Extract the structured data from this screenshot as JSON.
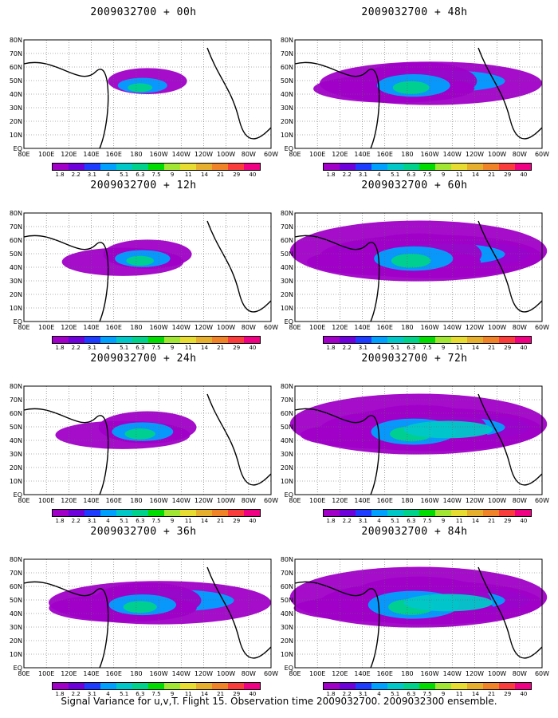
{
  "panels": [
    {
      "title": "2009032700 + 00h",
      "level": 0
    },
    {
      "title": "2009032700 + 48h",
      "level": 4
    },
    {
      "title": "2009032700 + 12h",
      "level": 1
    },
    {
      "title": "2009032700 + 60h",
      "level": 5
    },
    {
      "title": "2009032700 + 24h",
      "level": 2
    },
    {
      "title": "2009032700 + 72h",
      "level": 6
    },
    {
      "title": "2009032700 + 36h",
      "level": 3
    },
    {
      "title": "2009032700 + 84h",
      "level": 7
    }
  ],
  "lat_labels": [
    "80N",
    "70N",
    "60N",
    "50N",
    "40N",
    "30N",
    "20N",
    "10N",
    "EQ"
  ],
  "lon_labels": [
    "80E",
    "100E",
    "120E",
    "140E",
    "160E",
    "180",
    "160W",
    "140W",
    "120W",
    "100W",
    "80W",
    "60W"
  ],
  "colorbar": {
    "labels": [
      "1.8",
      "2.2",
      "3.1",
      "4",
      "5.1",
      "6.3",
      "7.5",
      "9",
      "11",
      "14",
      "21",
      "29",
      "40"
    ],
    "colors": [
      "#a000c8",
      "#6e00dc",
      "#1e3cff",
      "#00a0ff",
      "#00c8c8",
      "#00d28c",
      "#00dc00",
      "#a0e632",
      "#e6dc32",
      "#e6af2d",
      "#f08228",
      "#fa3c3c",
      "#f00082"
    ]
  },
  "caption": "Signal Variance for u,v,T. Flight 15. Observation time 2009032700. 2009032300 ensemble."
}
